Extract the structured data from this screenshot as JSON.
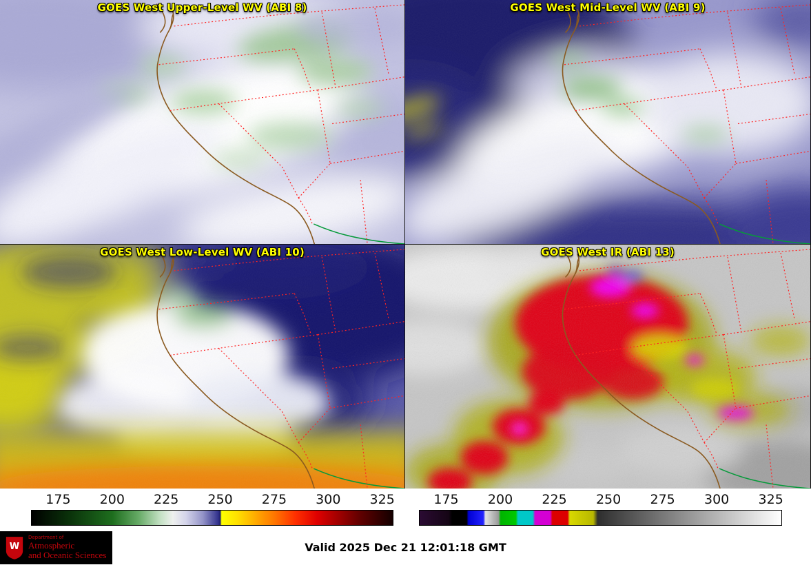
{
  "panels": [
    {
      "title": "GOES West Upper-Level WV (ABI 8)"
    },
    {
      "title": "GOES West Mid-Level WV (ABI 9)"
    },
    {
      "title": "GOES West Low-Level WV (ABI 10)"
    },
    {
      "title": "GOES West IR (ABI 13)"
    }
  ],
  "title_color": "#ffff00",
  "map": {
    "coastline_color": "#8a5a20",
    "state_border_color": "#ff2424",
    "mexico_border_color": "#069a3a"
  },
  "colorbars": {
    "ticks": [
      "175",
      "200",
      "225",
      "250",
      "275",
      "300",
      "325"
    ],
    "tick_positions_pct": [
      7.5,
      22.4,
      37.3,
      52.2,
      67.1,
      82.0,
      96.9
    ],
    "wv_stops": [
      [
        0,
        "#000000"
      ],
      [
        10.5,
        "#0a320a"
      ],
      [
        22.4,
        "#1e6e1e"
      ],
      [
        29.6,
        "#66aa66"
      ],
      [
        35.5,
        "#c2e0c2"
      ],
      [
        39.1,
        "#eef0ee"
      ],
      [
        42.7,
        "#d4d4ea"
      ],
      [
        47.4,
        "#9494c8"
      ],
      [
        51.6,
        "#34348e"
      ],
      [
        52.2,
        "#20206e"
      ],
      [
        52.6,
        "#ffff00"
      ],
      [
        57,
        "#ffe000"
      ],
      [
        63,
        "#ffa000"
      ],
      [
        67.1,
        "#ff7800"
      ],
      [
        73,
        "#ff3000"
      ],
      [
        79,
        "#e00000"
      ],
      [
        85,
        "#a00000"
      ],
      [
        91,
        "#600000"
      ],
      [
        96.9,
        "#2e0000"
      ],
      [
        100,
        "#140000"
      ]
    ],
    "ir_stops": [
      [
        0,
        "#2b0b33"
      ],
      [
        8,
        "#150515"
      ],
      [
        9,
        "#000000"
      ],
      [
        13,
        "#000000"
      ],
      [
        13.5,
        "#0000d2"
      ],
      [
        17.6,
        "#2222ff"
      ],
      [
        18.2,
        "#e2e2e2"
      ],
      [
        21.8,
        "#9a9a9a"
      ],
      [
        22.4,
        "#00b400"
      ],
      [
        26.6,
        "#00c800"
      ],
      [
        27.2,
        "#00c8c8"
      ],
      [
        31.3,
        "#00c8c8"
      ],
      [
        31.9,
        "#d400d4"
      ],
      [
        36.1,
        "#d400d4"
      ],
      [
        36.7,
        "#dc0000"
      ],
      [
        40.9,
        "#dc0000"
      ],
      [
        41.5,
        "#d8d800"
      ],
      [
        48,
        "#b8b800"
      ],
      [
        49.2,
        "#2e2e2e"
      ],
      [
        100,
        "#ffffff"
      ]
    ]
  },
  "footer": {
    "valid_time": "Valid 2025 Dec 21 12:01:18 GMT",
    "logo": {
      "dept_small": "Department of",
      "line1": "Atmospheric",
      "line2": "and Oceanic Sciences",
      "crest_letter": "W",
      "text_color": "#c5050c",
      "bg_color": "#000000"
    }
  }
}
